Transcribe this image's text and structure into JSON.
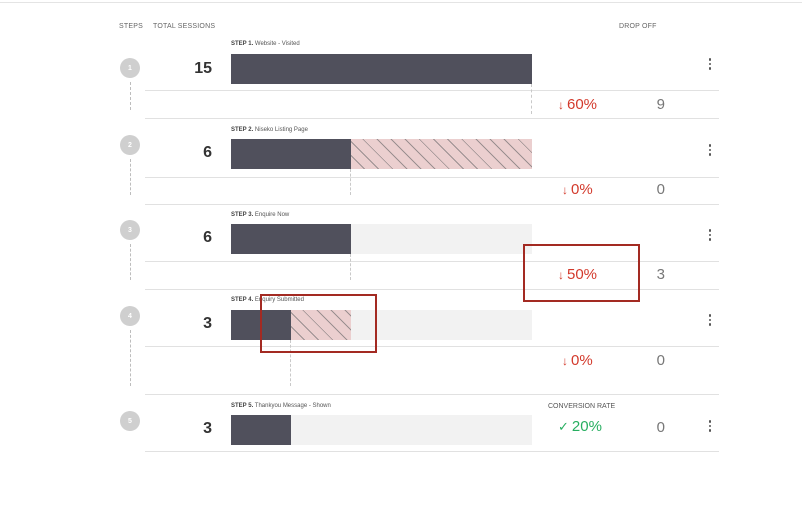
{
  "header": {
    "steps": "STEPS",
    "total_sessions": "TOTAL SESSIONS",
    "drop_off": "DROP OFF"
  },
  "steps": [
    {
      "number": "1",
      "prefix": "STEP 1.",
      "name": "Website - Visited",
      "sessions": "15",
      "drop_pct": "60%",
      "drop_count": "9"
    },
    {
      "number": "2",
      "prefix": "STEP 2.",
      "name": "Niseko Listing Page",
      "sessions": "6",
      "drop_pct": "0%",
      "drop_count": "0"
    },
    {
      "number": "3",
      "prefix": "STEP 3.",
      "name": "Enquire Now",
      "sessions": "6",
      "drop_pct": "50%",
      "drop_count": "3"
    },
    {
      "number": "4",
      "prefix": "STEP 4.",
      "name": "Enquiry Submitted",
      "sessions": "3",
      "drop_pct": "0%",
      "drop_count": "0"
    },
    {
      "number": "5",
      "prefix": "STEP 5.",
      "name": "Thankyou Message - Shown",
      "sessions": "3",
      "conversion_label": "CONVERSION RATE",
      "conversion_pct": "20%",
      "drop_count": "0"
    }
  ],
  "colors": {
    "bar": "#50505c",
    "hatch": "#ebcfcf",
    "drop": "#d33a2c",
    "conversion": "#27ae60",
    "highlight": "#a32a22"
  },
  "icons": {
    "drop_arrow": "arrow-down-icon",
    "conversion_check": "check-icon",
    "menu": "kebab-menu-icon"
  }
}
